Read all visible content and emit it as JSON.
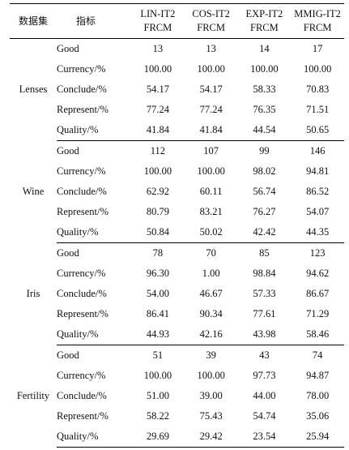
{
  "table": {
    "headers": {
      "dataset": "数据集",
      "indicator": "指标",
      "methods": [
        {
          "line1": "LIN-IT2",
          "line2": "FRCM"
        },
        {
          "line1": "COS-IT2",
          "line2": "FRCM"
        },
        {
          "line1": "EXP-IT2",
          "line2": "FRCM"
        },
        {
          "line1": "MMIG-IT2",
          "line2": "FRCM"
        }
      ]
    },
    "groups": [
      {
        "dataset": "Lenses",
        "rows": [
          {
            "indicator": "Good",
            "values": [
              "13",
              "13",
              "14",
              "17"
            ]
          },
          {
            "indicator": "Currency/%",
            "values": [
              "100.00",
              "100.00",
              "100.00",
              "100.00"
            ]
          },
          {
            "indicator": "Conclude/%",
            "values": [
              "54.17",
              "54.17",
              "58.33",
              "70.83"
            ]
          },
          {
            "indicator": "Represent/%",
            "values": [
              "77.24",
              "77.24",
              "76.35",
              "71.51"
            ]
          },
          {
            "indicator": "Quality/%",
            "values": [
              "41.84",
              "41.84",
              "44.54",
              "50.65"
            ]
          }
        ]
      },
      {
        "dataset": "Wine",
        "rows": [
          {
            "indicator": "Good",
            "values": [
              "112",
              "107",
              "99",
              "146"
            ]
          },
          {
            "indicator": "Currency/%",
            "values": [
              "100.00",
              "100.00",
              "98.02",
              "94.81"
            ]
          },
          {
            "indicator": "Conclude/%",
            "values": [
              "62.92",
              "60.11",
              "56.74",
              "86.52"
            ]
          },
          {
            "indicator": "Represent/%",
            "values": [
              "80.79",
              "83.21",
              "76.27",
              "54.07"
            ]
          },
          {
            "indicator": "Quality/%",
            "values": [
              "50.84",
              "50.02",
              "42.42",
              "44.35"
            ]
          }
        ]
      },
      {
        "dataset": "Iris",
        "rows": [
          {
            "indicator": "Good",
            "values": [
              "78",
              "70",
              "85",
              "123"
            ]
          },
          {
            "indicator": "Currency/%",
            "values": [
              "96.30",
              "1.00",
              "98.84",
              "94.62"
            ]
          },
          {
            "indicator": "Conclude/%",
            "values": [
              "54.00",
              "46.67",
              "57.33",
              "86.67"
            ]
          },
          {
            "indicator": "Represent/%",
            "values": [
              "86.41",
              "90.34",
              "77.61",
              "71.29"
            ]
          },
          {
            "indicator": "Quality/%",
            "values": [
              "44.93",
              "42.16",
              "43.98",
              "58.46"
            ]
          }
        ]
      },
      {
        "dataset": "Fertility",
        "rows": [
          {
            "indicator": "Good",
            "values": [
              "51",
              "39",
              "43",
              "74"
            ]
          },
          {
            "indicator": "Currency/%",
            "values": [
              "100.00",
              "100.00",
              "97.73",
              "94.87"
            ]
          },
          {
            "indicator": "Conclude/%",
            "values": [
              "51.00",
              "39.00",
              "44.00",
              "78.00"
            ]
          },
          {
            "indicator": "Represent/%",
            "values": [
              "58.22",
              "75.43",
              "54.74",
              "35.06"
            ]
          },
          {
            "indicator": "Quality/%",
            "values": [
              "29.69",
              "29.42",
              "23.54",
              "25.94"
            ]
          }
        ]
      }
    ]
  }
}
